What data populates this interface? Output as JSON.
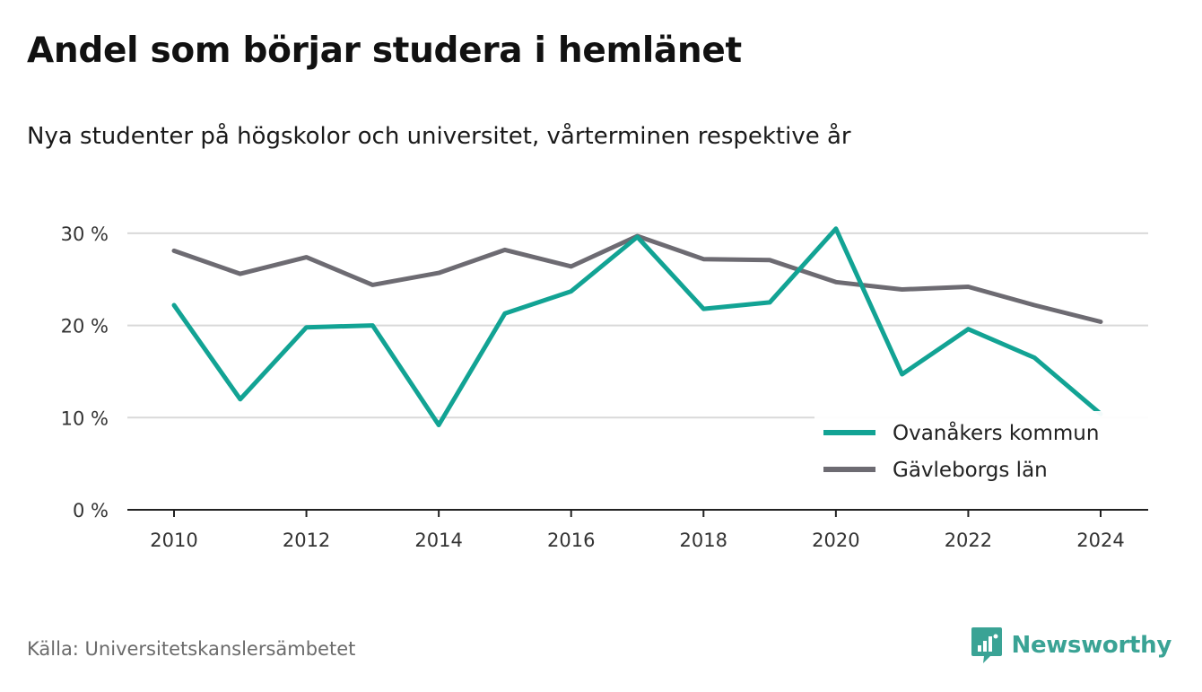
{
  "title": "Andel som börjar studera i hemlänet",
  "subtitle": "Nya studenter på högskolor och universitet, vårterminen respektive år",
  "source": "Källa: Universitetskanslersämbetet",
  "brand": {
    "name": "Newsworthy",
    "icon": "newsworthy-logo-icon",
    "color": "#3aa395"
  },
  "chart_data": {
    "type": "line",
    "x": [
      2010,
      2011,
      2012,
      2013,
      2014,
      2015,
      2016,
      2017,
      2018,
      2019,
      2020,
      2021,
      2022,
      2023,
      2024
    ],
    "x_ticks": [
      2010,
      2012,
      2014,
      2016,
      2018,
      2020,
      2022,
      2024
    ],
    "y_ticks": [
      0,
      10,
      20,
      30
    ],
    "y_tick_labels": [
      "0 %",
      "10 %",
      "20 %",
      "30 %"
    ],
    "ylim": [
      0,
      34
    ],
    "grid": true,
    "legend_position": "bottom-right",
    "series": [
      {
        "name": "Ovanåkers kommun",
        "color": "#12a394",
        "values": [
          22.2,
          12.0,
          19.8,
          20.0,
          9.2,
          21.3,
          23.7,
          29.6,
          21.8,
          22.5,
          30.5,
          14.7,
          19.6,
          16.5,
          10.4
        ]
      },
      {
        "name": "Gävleborgs län",
        "color": "#6d6b72",
        "values": [
          28.1,
          25.6,
          27.4,
          24.4,
          25.7,
          28.2,
          26.4,
          29.7,
          27.2,
          27.1,
          24.7,
          23.9,
          24.2,
          22.2,
          20.4
        ]
      }
    ]
  }
}
